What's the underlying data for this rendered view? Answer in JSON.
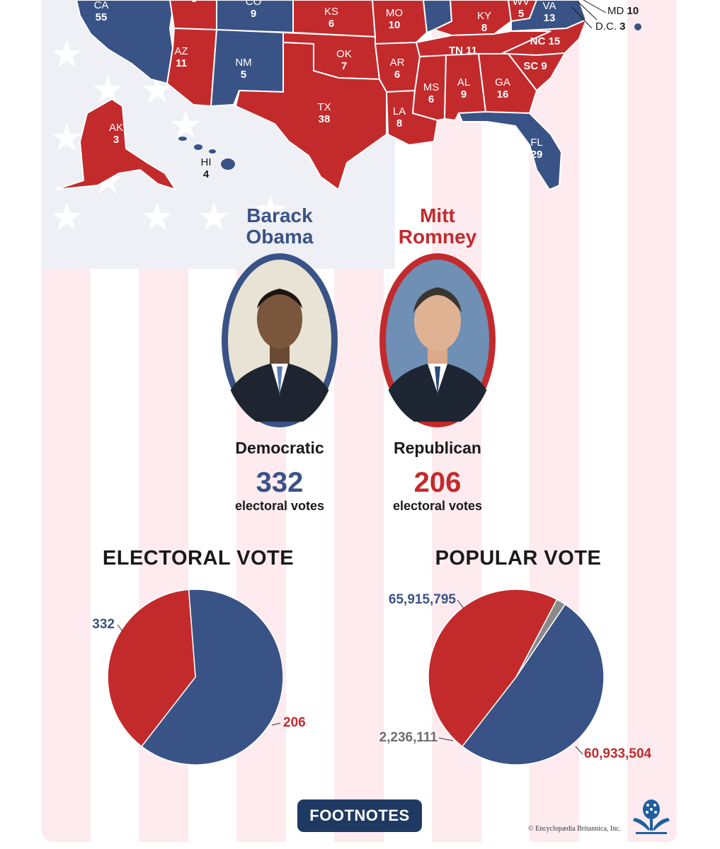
{
  "colors": {
    "democratic": "#3a5386",
    "republican": "#c32a2c",
    "other": "#8a8a8a",
    "footnote_bg": "#1f3a62"
  },
  "map": {
    "states": [
      {
        "abbr": "CA",
        "votes": "55",
        "party": "D"
      },
      {
        "abbr": "",
        "votes": "6",
        "party": "R"
      },
      {
        "abbr": "CO",
        "votes": "9",
        "party": "D"
      },
      {
        "abbr": "KS",
        "votes": "6",
        "party": "R"
      },
      {
        "abbr": "MO",
        "votes": "10",
        "party": "R"
      },
      {
        "abbr": "KY",
        "votes": "8",
        "party": "R"
      },
      {
        "abbr": "WV",
        "votes": "5",
        "party": "R"
      },
      {
        "abbr": "VA",
        "votes": "13",
        "party": "D"
      },
      {
        "abbr": "AZ",
        "votes": "11",
        "party": "R"
      },
      {
        "abbr": "NM",
        "votes": "5",
        "party": "D"
      },
      {
        "abbr": "OK",
        "votes": "7",
        "party": "R"
      },
      {
        "abbr": "AR",
        "votes": "6",
        "party": "R"
      },
      {
        "abbr": "TN",
        "votes": "11",
        "party": "R"
      },
      {
        "abbr": "NC",
        "votes": "15",
        "party": "R"
      },
      {
        "abbr": "SC",
        "votes": "9",
        "party": "R"
      },
      {
        "abbr": "MS",
        "votes": "6",
        "party": "R"
      },
      {
        "abbr": "AL",
        "votes": "9",
        "party": "R"
      },
      {
        "abbr": "GA",
        "votes": "16",
        "party": "R"
      },
      {
        "abbr": "TX",
        "votes": "38",
        "party": "R"
      },
      {
        "abbr": "LA",
        "votes": "8",
        "party": "R"
      },
      {
        "abbr": "FL",
        "votes": "29",
        "party": "D"
      },
      {
        "abbr": "AK",
        "votes": "3",
        "party": "R"
      },
      {
        "abbr": "HI",
        "votes": "4",
        "party": "D"
      }
    ],
    "callouts": [
      {
        "abbr": "MD",
        "votes": "10",
        "party": "D"
      },
      {
        "abbr": "D.C.",
        "votes": "3",
        "party": "D"
      }
    ]
  },
  "candidates": [
    {
      "first": "Barack",
      "last": "Obama",
      "party": "Democratic",
      "electoral_votes": "332",
      "electoral_label": "electoral votes"
    },
    {
      "first": "Mitt",
      "last": "Romney",
      "party": "Republican",
      "electoral_votes": "206",
      "electoral_label": "electoral votes"
    }
  ],
  "chart_data": [
    {
      "type": "pie",
      "title": "ELECTORAL VOTE",
      "slices": [
        {
          "label": "332",
          "value": 332,
          "party": "Democratic",
          "color": "#3a5386"
        },
        {
          "label": "206",
          "value": 206,
          "party": "Republican",
          "color": "#c32a2c"
        }
      ]
    },
    {
      "type": "pie",
      "title": "POPULAR VOTE",
      "slices": [
        {
          "label": "65,915,795",
          "value": 65915795,
          "party": "Democratic",
          "color": "#3a5386"
        },
        {
          "label": "60,933,504",
          "value": 60933504,
          "party": "Republican",
          "color": "#c32a2c"
        },
        {
          "label": "2,236,111",
          "value": 2236111,
          "party": "Other",
          "color": "#8a8a8a"
        }
      ]
    }
  ],
  "footer": {
    "button_label": "FOOTNOTES",
    "copyright": "© Encyclopædia Britannica, Inc."
  }
}
